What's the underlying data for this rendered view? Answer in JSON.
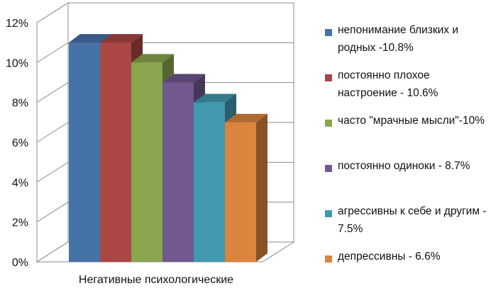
{
  "chart_data": {
    "type": "bar",
    "title": "",
    "xlabel": "",
    "ylabel": "",
    "categories": [
      "Негативные психологические"
    ],
    "ylim": [
      0,
      12
    ],
    "yticks": [
      "0%",
      "2%",
      "4%",
      "6%",
      "8%",
      "10%",
      "12%"
    ],
    "ytick_values": [
      0,
      2,
      4,
      6,
      8,
      10,
      12
    ],
    "grid": true,
    "three_d": true,
    "legend_position": "right",
    "series": [
      {
        "name": "непонимание близких и родных -10.8%",
        "value": 11,
        "color": "#4572A7"
      },
      {
        "name": "постоянно плохое настроение - 10.6%",
        "value": 11,
        "color": "#AA4643"
      },
      {
        "name": "часто \"мрачные мысли\"-10%",
        "value": 10,
        "color": "#89A54E"
      },
      {
        "name": "постоянно одиноки - 8.7%",
        "value": 9,
        "color": "#71588F"
      },
      {
        "name": "агрессивны к себе и другим - 7.5%",
        "value": 8,
        "color": "#4198AF"
      },
      {
        "name": "депрессивны - 6.6%",
        "value": 7,
        "color": "#DB843D"
      }
    ]
  }
}
